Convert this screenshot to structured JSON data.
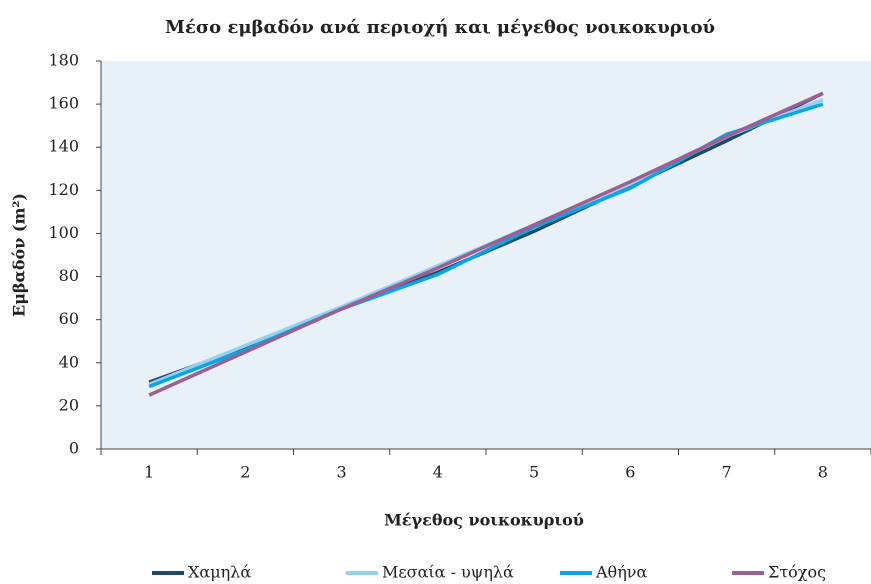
{
  "chart_data": {
    "type": "line",
    "title": "Μέσο εμβαδόν ανά περιοχή και μέγεθος νοικοκυριού",
    "x_label": "Μέγεθος νοικοκυριού",
    "y_label": "Εμβαδόν (m²)",
    "categories": [
      "1",
      "2",
      "3",
      "4",
      "5",
      "6",
      "7",
      "8"
    ],
    "series": [
      {
        "name": "Χαμηλά",
        "color": "#1b4a6e",
        "values": [
          31,
          47,
          65,
          82,
          101,
          122,
          143,
          165
        ]
      },
      {
        "name": "Μεσαία - υψηλά",
        "color": "#92d2f0",
        "values": [
          30,
          48,
          66,
          85,
          104,
          123,
          145,
          162
        ]
      },
      {
        "name": "Αθήνα",
        "color": "#0aa5e2",
        "values": [
          29,
          46,
          65,
          81,
          103,
          121,
          146,
          160
        ]
      },
      {
        "name": "Στόχος",
        "color": "#9c5e93",
        "values": [
          25,
          45,
          65,
          84,
          104,
          124,
          145,
          165
        ]
      }
    ],
    "ylim": [
      0,
      180
    ],
    "yticks": [
      0,
      20,
      40,
      60,
      80,
      100,
      120,
      140,
      160,
      180
    ],
    "legend": "bottom"
  }
}
